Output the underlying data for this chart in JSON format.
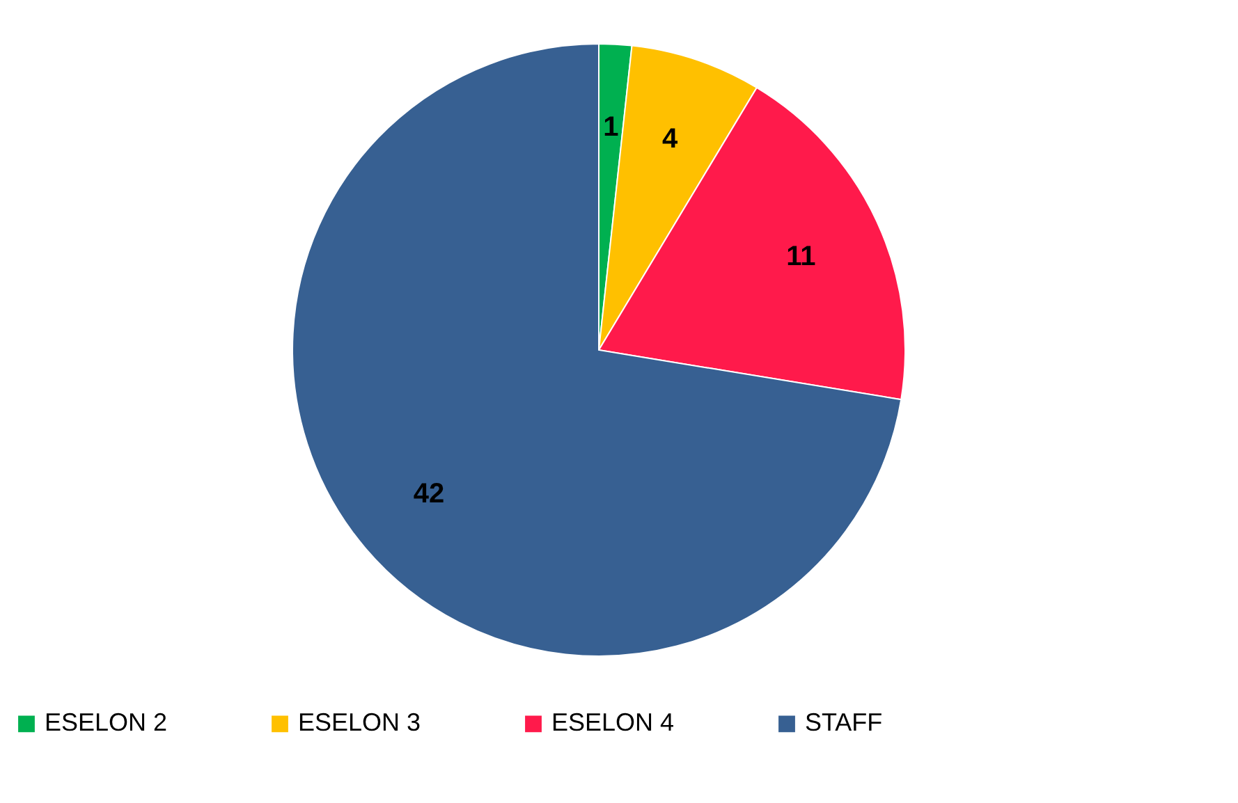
{
  "chart_data": {
    "type": "pie",
    "categories": [
      "ESELON 2",
      "ESELON 3",
      "ESELON 4",
      "STAFF"
    ],
    "values": [
      1,
      4,
      11,
      42
    ],
    "colors": [
      "#00b050",
      "#ffc000",
      "#ff1a4b",
      "#376092"
    ],
    "data_labels": true,
    "legend": "bottom"
  }
}
